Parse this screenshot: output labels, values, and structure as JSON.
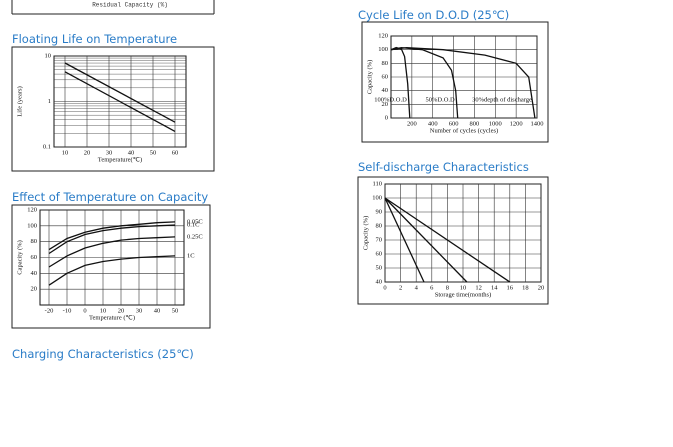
{
  "fragment": {
    "label": "Residual Capacity (%)"
  },
  "sections": [
    "Floating Life on Temperature",
    "Effect of Temperature on Capacity",
    "Charging Characteristics (25℃)",
    "Cycle Life on D.O.D (25℃)",
    "Self-discharge Characteristics"
  ],
  "chart_data": [
    {
      "type": "line",
      "xlabel": "Temperature(℃)",
      "ylabel": "Life (years)",
      "log_y": true,
      "grid": true,
      "xlim": [
        5,
        65
      ],
      "xticks": [
        10,
        20,
        30,
        40,
        50,
        60
      ],
      "ylim": [
        0.1,
        10
      ],
      "yticks": [
        0.1,
        1,
        10
      ],
      "series": [
        {
          "color": "#111",
          "x": [
            10,
            60
          ],
          "values": [
            7,
            0.35
          ]
        },
        {
          "color": "#111",
          "x": [
            10,
            60
          ],
          "values": [
            4.5,
            0.22
          ]
        }
      ]
    },
    {
      "type": "line",
      "xlabel": "Temperature (℃)",
      "ylabel": "Capacity (%)",
      "grid": true,
      "xlim": [
        -25,
        55
      ],
      "xticks": [
        -20,
        -10,
        0,
        10,
        20,
        30,
        40,
        50
      ],
      "ylim": [
        0,
        120
      ],
      "yticks": [
        20,
        40,
        60,
        80,
        100,
        120
      ],
      "series": [
        {
          "name": "0.05C",
          "color": "#111",
          "x": [
            -20,
            -10,
            0,
            10,
            20,
            30,
            40,
            50
          ],
          "values": [
            70,
            84,
            92,
            97,
            100,
            102,
            104,
            105
          ]
        },
        {
          "name": "0.1C",
          "color": "#111",
          "x": [
            -20,
            -10,
            0,
            10,
            20,
            30,
            40,
            50
          ],
          "values": [
            65,
            80,
            89,
            94,
            97,
            99,
            100,
            101
          ]
        },
        {
          "name": "0.25C",
          "color": "#111",
          "x": [
            -20,
            -10,
            0,
            10,
            20,
            30,
            40,
            50
          ],
          "values": [
            48,
            62,
            72,
            78,
            82,
            84,
            85,
            86
          ]
        },
        {
          "name": "1C",
          "color": "#111",
          "x": [
            -20,
            -10,
            0,
            10,
            20,
            30,
            40,
            50
          ],
          "values": [
            25,
            40,
            50,
            55,
            58,
            60,
            61,
            62
          ]
        }
      ]
    },
    {
      "type": "line",
      "xlabel": "Number of cycles (cycles)",
      "ylabel": "Capacity (%)",
      "grid": true,
      "xlim": [
        0,
        1400
      ],
      "xticks": [
        200,
        400,
        600,
        800,
        1000,
        1200,
        1400
      ],
      "ylim": [
        0,
        120
      ],
      "yticks": [
        0,
        20,
        40,
        60,
        80,
        100,
        120
      ],
      "series": [
        {
          "name": "100%D.O.D",
          "color": "#111",
          "x": [
            0,
            50,
            100,
            130,
            160,
            180
          ],
          "values": [
            100,
            103,
            101,
            90,
            50,
            0
          ]
        },
        {
          "name": "50%D.O.D",
          "color": "#111",
          "x": [
            0,
            100,
            300,
            500,
            580,
            620,
            640
          ],
          "values": [
            100,
            103,
            100,
            88,
            70,
            40,
            0
          ]
        },
        {
          "name": "30%depth of discharge",
          "color": "#111",
          "x": [
            0,
            150,
            500,
            900,
            1200,
            1320,
            1380
          ],
          "values": [
            100,
            103,
            100,
            92,
            80,
            60,
            0
          ]
        }
      ]
    },
    {
      "type": "line",
      "xlabel": "Storage time(months)",
      "ylabel": "Capacity (%)",
      "grid": true,
      "xlim": [
        0,
        20
      ],
      "xticks": [
        0,
        2,
        4,
        6,
        8,
        10,
        12,
        14,
        16,
        18,
        20
      ],
      "ylim": [
        40,
        110
      ],
      "yticks": [
        40,
        50,
        60,
        70,
        80,
        90,
        100,
        110
      ],
      "series": [
        {
          "color": "#111",
          "x": [
            0,
            5
          ],
          "values": [
            100,
            40
          ]
        },
        {
          "color": "#111",
          "x": [
            0,
            10.5
          ],
          "values": [
            100,
            40
          ]
        },
        {
          "color": "#111",
          "x": [
            0,
            16
          ],
          "values": [
            100,
            40
          ]
        }
      ]
    }
  ]
}
